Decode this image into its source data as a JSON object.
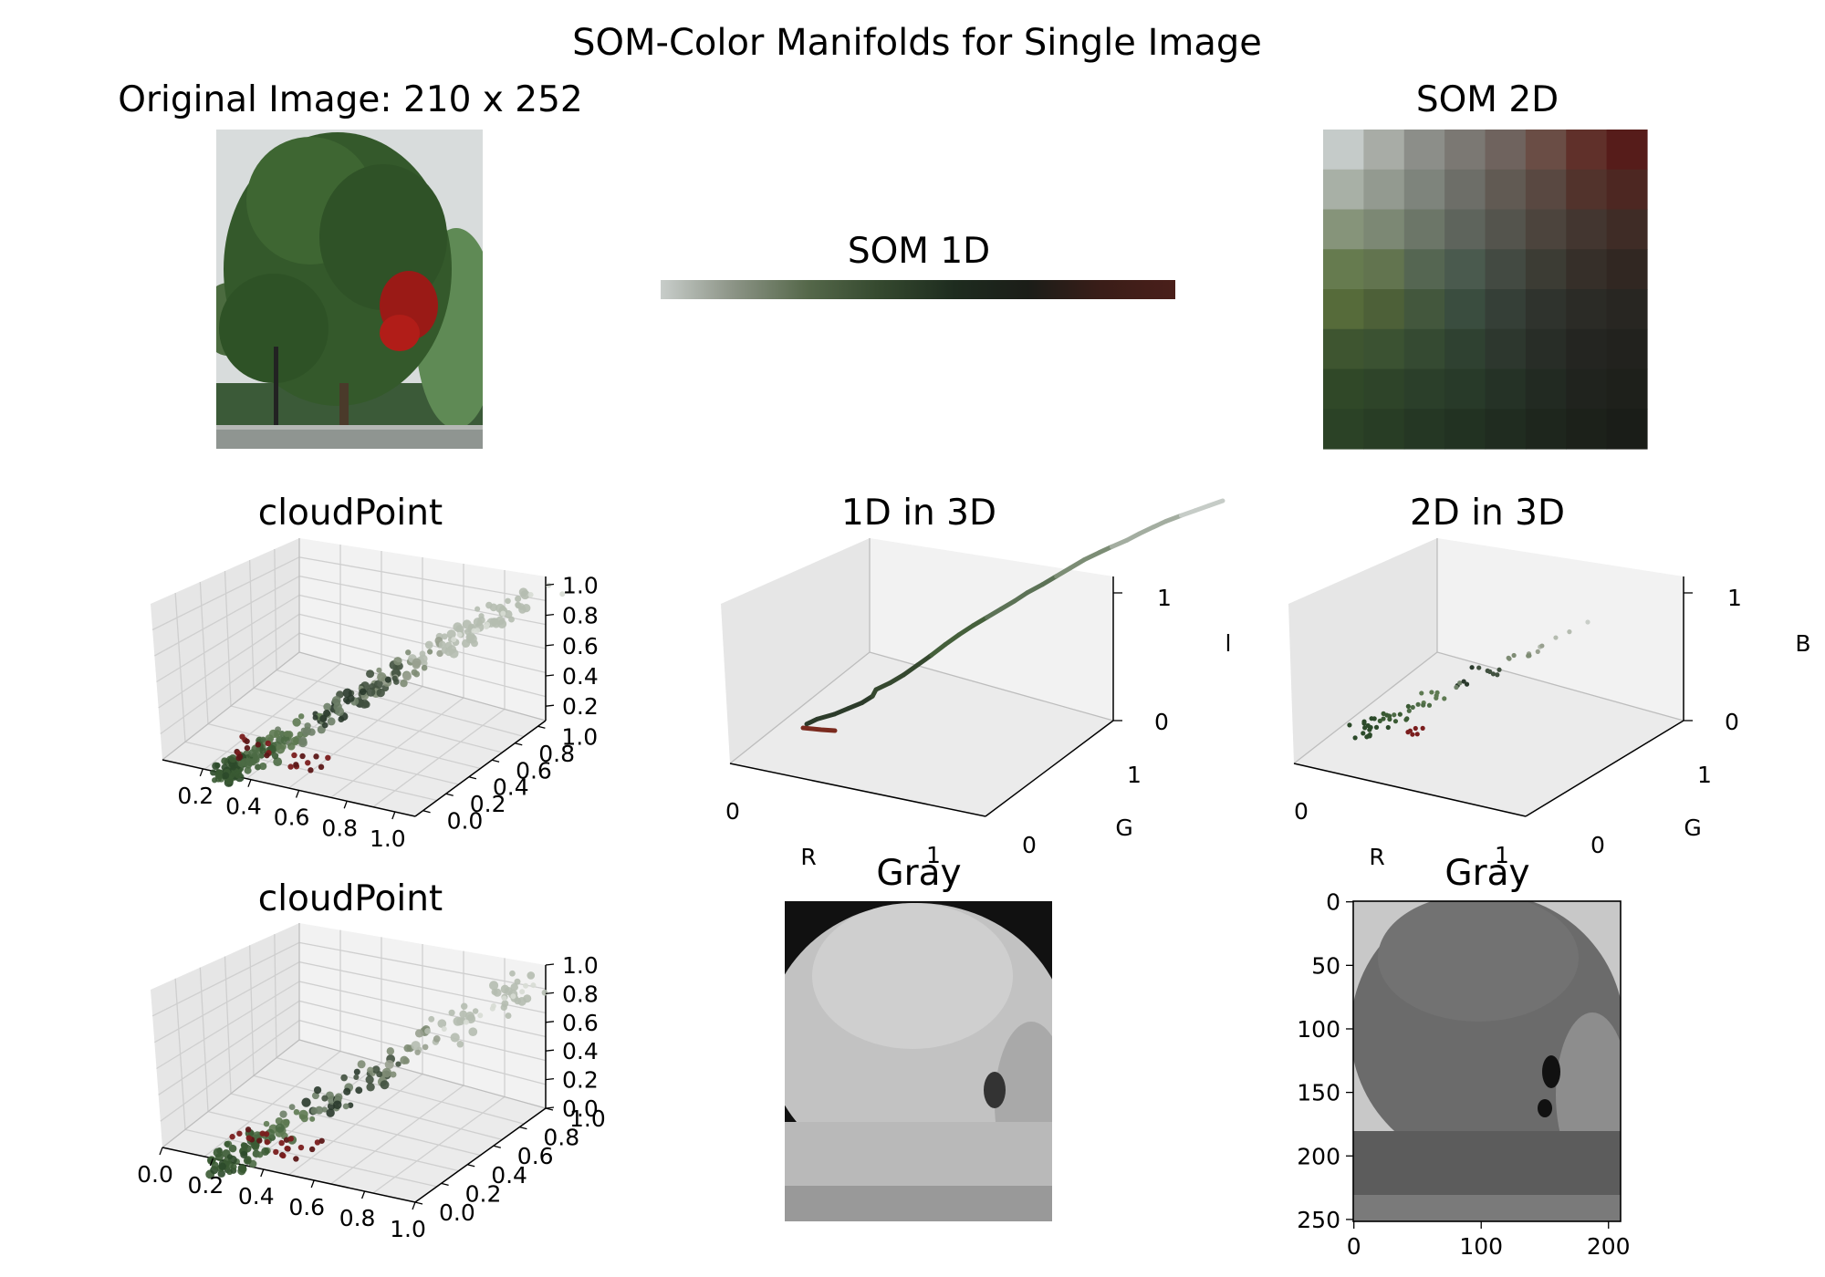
{
  "figure": {
    "suptitle": "SOM-Color Manifolds for Single Image",
    "original_title": "Original Image: 210 x 252",
    "som1d_title": "SOM 1D",
    "som2d_title": "SOM 2D",
    "cloud1_title": "cloudPoint",
    "line3d_title": "1D in 3D",
    "grid3d_title": "2D in 3D",
    "cloud2_title": "cloudPoint",
    "gray1_title": "Gray",
    "gray2_title": "Gray"
  },
  "colors": {
    "som1d_gradient": [
      "#c8cdca",
      "#8b9385",
      "#55684a",
      "#34482e",
      "#1e2c1f",
      "#1b1d18",
      "#3a1d18",
      "#4a1f1a"
    ],
    "som2d_grid": [
      [
        "#c5cbc9",
        "#a8aca6",
        "#8c8e89",
        "#7b7873",
        "#6f635e",
        "#6a4d45",
        "#60302a",
        "#561c1a"
      ],
      [
        "#a8b0a6",
        "#939a90",
        "#7e847c",
        "#6d6e68",
        "#615a53",
        "#594841",
        "#52332c",
        "#4d2722"
      ],
      [
        "#86947a",
        "#7c8874",
        "#6c7668",
        "#5e645c",
        "#54544d",
        "#4c443d",
        "#433630",
        "#3f2c26"
      ],
      [
        "#667b4f",
        "#62744f",
        "#556652",
        "#4a5a4e",
        "#434a42",
        "#3c3c34",
        "#362f29",
        "#312722"
      ],
      [
        "#566b3a",
        "#4d6038",
        "#43573d",
        "#3a4d3f",
        "#353f37",
        "#2f332d",
        "#2b2b26",
        "#282622"
      ],
      [
        "#3e5530",
        "#3b5232",
        "#354a32",
        "#2f4131",
        "#2d372e",
        "#282d27",
        "#242521",
        "#22221e"
      ],
      [
        "#304828",
        "#2e4429",
        "#2b3f2a",
        "#283a29",
        "#253226",
        "#222a22",
        "#20231e",
        "#1e201b"
      ],
      [
        "#2b4226",
        "#283d25",
        "#253724",
        "#223222",
        "#202c20",
        "#1e261d",
        "#1c211a",
        "#1a1d18"
      ]
    ]
  },
  "chart_data": [
    {
      "type": "image",
      "title": "Original Image: 210 x 252",
      "image_width": 210,
      "image_height": 252
    },
    {
      "type": "heatmap",
      "title": "SOM 1D",
      "description_colors": "colors.som1d_gradient"
    },
    {
      "type": "heatmap",
      "title": "SOM 2D",
      "rows": 8,
      "cols": 8,
      "description_colors": "colors.som2d_grid"
    },
    {
      "type": "scatter",
      "title": "cloudPoint",
      "projection": "3d",
      "axes": {
        "x_ticks": [
          "0.2",
          "0.4",
          "0.6",
          "0.8",
          "1.0"
        ],
        "y_ticks": [
          "0.0",
          "0.2",
          "0.4",
          "0.6",
          "0.8",
          "1.0"
        ],
        "z_ticks": [
          "0.2",
          "0.4",
          "0.6",
          "0.8",
          "1.0"
        ]
      }
    },
    {
      "type": "line",
      "title": "1D in 3D",
      "projection": "3d",
      "xlabel": "R",
      "ylabel": "G",
      "zlabel": "l",
      "axes": {
        "x_ticks": [
          "0",
          "1"
        ],
        "y_ticks": [
          "0",
          "1"
        ],
        "z_ticks": [
          "0",
          "1"
        ]
      }
    },
    {
      "type": "scatter",
      "title": "2D in 3D",
      "projection": "3d",
      "xlabel": "R",
      "ylabel": "G",
      "zlabel": "B",
      "axes": {
        "x_ticks": [
          "0",
          "1"
        ],
        "y_ticks": [
          "0",
          "1"
        ],
        "z_ticks": [
          "0",
          "1"
        ]
      }
    },
    {
      "type": "scatter",
      "title": "cloudPoint",
      "projection": "3d",
      "axes": {
        "x_ticks": [
          "0.0",
          "0.2",
          "0.4",
          "0.6",
          "0.8",
          "1.0"
        ],
        "y_ticks": [
          "0.0",
          "0.2",
          "0.4",
          "0.6",
          "0.8",
          "1.0"
        ],
        "z_ticks": [
          "0.0",
          "0.2",
          "0.4",
          "0.6",
          "0.8",
          "1.0"
        ]
      }
    },
    {
      "type": "image",
      "title": "Gray",
      "colormap": "gray"
    },
    {
      "type": "image",
      "title": "Gray",
      "colormap": "gray",
      "x_ticks": [
        "0",
        "100",
        "200"
      ],
      "y_ticks": [
        "0",
        "50",
        "100",
        "150",
        "200",
        "250"
      ]
    }
  ]
}
